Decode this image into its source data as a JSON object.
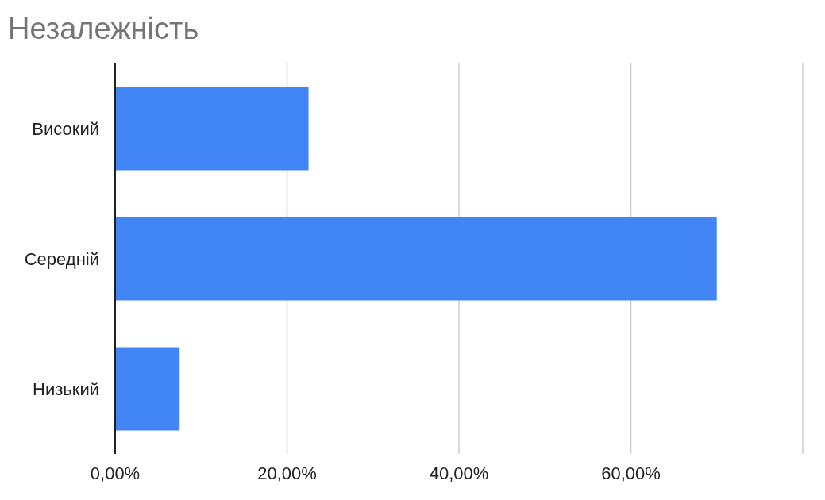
{
  "chart_data": {
    "type": "bar",
    "title": "Незалежність",
    "orientation": "horizontal",
    "categories": [
      "Високий",
      "Середній",
      "Низький"
    ],
    "values": [
      22.5,
      70,
      7.5
    ],
    "color": "#4285f4",
    "xlim": [
      0,
      80
    ],
    "xticks": [
      {
        "value": 0,
        "label": "0,00%"
      },
      {
        "value": 20,
        "label": "20,00%"
      },
      {
        "value": 40,
        "label": "40,00%"
      },
      {
        "value": 60,
        "label": "60,00%"
      }
    ],
    "grid": "x",
    "legend": false
  }
}
